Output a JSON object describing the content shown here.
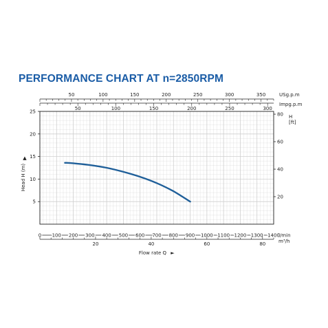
{
  "title": "PERFORMANCE CHART AT n=2850RPM",
  "colors": {
    "title": "#1a5ca6",
    "curve": "#1f5f99",
    "grid": "#cfcfcf",
    "axis": "#222222"
  },
  "chart_data": {
    "type": "line",
    "title": "PERFORMANCE CHART AT n=2850RPM",
    "grid": true,
    "x_axis": {
      "label": "Flow rate Q",
      "unit": "l/min",
      "range": [
        0,
        1400
      ],
      "ticks": [
        0,
        100,
        200,
        300,
        400,
        500,
        600,
        700,
        800,
        900,
        1000,
        1100,
        1200,
        1300,
        1400
      ]
    },
    "x_axis_m3h": {
      "unit": "m³/h",
      "range": [
        0,
        84
      ],
      "ticks": [
        20,
        40,
        60,
        80
      ]
    },
    "x_axis_usgpm": {
      "unit": "USg.p.m",
      "range": [
        0,
        370
      ],
      "ticks": [
        50,
        100,
        150,
        200,
        250,
        300,
        350
      ]
    },
    "x_axis_impgpm": {
      "unit": "Impg.p.m",
      "range": [
        0,
        308
      ],
      "ticks": [
        50,
        100,
        150,
        200,
        250,
        300
      ]
    },
    "y_axis": {
      "label": "Head H (m)",
      "range": [
        0,
        25
      ],
      "ticks": [
        5,
        10,
        15,
        20,
        25
      ]
    },
    "y_axis_ft": {
      "unit": "H\n[ft]",
      "ticks": [
        20,
        40,
        60,
        80
      ]
    },
    "series": [
      {
        "x": [
          150,
          200,
          300,
          400,
          500,
          600,
          700,
          800,
          900
        ],
        "y": [
          13.6,
          13.5,
          13.1,
          12.5,
          11.6,
          10.5,
          9.1,
          7.3,
          5.0
        ]
      }
    ],
    "arrows": [
      "▲",
      "►"
    ]
  }
}
